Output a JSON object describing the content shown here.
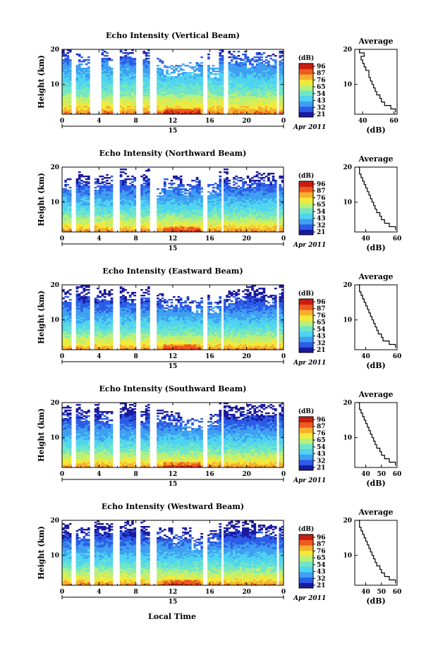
{
  "figure": {
    "date_label": "Apr 2011",
    "day_label": "15",
    "xlabel": "Local Time",
    "x_tick_labels": [
      "0",
      "4",
      "8",
      "12",
      "16",
      "20",
      "0"
    ],
    "colorbar_unit": "(dB)",
    "colorbar_tick_labels": [
      "96",
      "87",
      "76",
      "65",
      "54",
      "43",
      "32",
      "21"
    ],
    "panel_titles": [
      "Echo Intensity (Vertical Beam)",
      "Echo Intensity (Northward Beam)",
      "Echo Intensity (Eastward Beam)",
      "Echo Intensity (Southward Beam)",
      "Echo Intensity (Westward Beam)"
    ],
    "avg_title": "Average",
    "colors": {
      "background": "#ffffff",
      "axes": "#000000",
      "colormap": [
        "#1a1aa0",
        "#2d5ce6",
        "#3f9ff2",
        "#4fd3f0",
        "#6fe6c8",
        "#b8f07a",
        "#f2ea3a",
        "#f6b02e",
        "#ef5a1e",
        "#c81e10"
      ]
    }
  },
  "chart_data": [
    {
      "type": "heatmap",
      "title": "Echo Intensity (Vertical Beam)",
      "xlabel": "",
      "ylabel": "Height (km)",
      "xlim": [
        0,
        24
      ],
      "ylim": [
        1.5,
        20
      ],
      "x_tick_values": [
        0,
        4,
        8,
        12,
        16,
        20,
        24
      ],
      "y_ticks": [
        10,
        20
      ],
      "colorbar": {
        "label": "(dB)",
        "ticks": [
          21,
          32,
          43,
          54,
          65,
          76,
          87,
          96
        ],
        "range": [
          21,
          96
        ]
      },
      "height_profile_km": [
        1.5,
        3,
        4.5,
        6,
        7.5,
        9,
        10.5,
        12,
        13.5,
        15,
        16.5,
        18,
        19.5
      ],
      "intensity_profile_db": [
        85,
        74,
        68,
        63,
        57,
        53,
        49,
        45,
        42,
        39,
        35,
        30,
        26
      ],
      "data_gaps_hours": [
        [
          0.9,
          1.4
        ],
        [
          3.0,
          4.3
        ],
        [
          5.6,
          6.2
        ],
        [
          8.0,
          8.7
        ],
        [
          9.6,
          10.2
        ],
        [
          15.3,
          15.8
        ],
        [
          17.4,
          18.0
        ],
        [
          23.2,
          23.6
        ]
      ],
      "echo_top_km": 19.5,
      "average": {
        "type": "line",
        "title": "Average",
        "xlabel": "(dB)",
        "ylabel": "",
        "xlim": [
          35,
          62
        ],
        "ylim": [
          1.5,
          20
        ],
        "x_ticks": [
          40,
          60
        ],
        "y_ticks": [
          10,
          20
        ],
        "y_km": [
          2,
          3,
          4,
          5,
          6,
          7,
          8,
          9,
          10,
          11,
          12,
          13,
          14,
          15,
          16,
          17,
          18,
          19,
          20
        ],
        "x_db": [
          61,
          58,
          54,
          52,
          51,
          49,
          48,
          47,
          46,
          45,
          44,
          44,
          42,
          41,
          40,
          39,
          41,
          38,
          39
        ]
      }
    },
    {
      "type": "heatmap",
      "title": "Echo Intensity (Northward Beam)",
      "xlabel": "",
      "ylabel": "Height (km)",
      "xlim": [
        0,
        24
      ],
      "ylim": [
        1.5,
        20
      ],
      "x_tick_values": [
        0,
        4,
        8,
        12,
        16,
        20,
        24
      ],
      "y_ticks": [
        10,
        20
      ],
      "colorbar": {
        "label": "(dB)",
        "ticks": [
          21,
          32,
          43,
          54,
          65,
          76,
          87,
          96
        ],
        "range": [
          21,
          96
        ]
      },
      "height_profile_km": [
        1.5,
        3,
        4.5,
        6,
        7.5,
        9,
        10.5,
        12,
        13.5,
        15,
        16.5,
        18,
        19.5
      ],
      "intensity_profile_db": [
        82,
        72,
        64,
        58,
        52,
        47,
        43,
        39,
        35,
        31,
        27,
        24,
        21
      ],
      "data_gaps_hours": [
        [
          0.9,
          1.4
        ],
        [
          3.0,
          3.6
        ],
        [
          5.6,
          6.2
        ],
        [
          8.0,
          8.6
        ],
        [
          9.5,
          10.2
        ],
        [
          15.2,
          15.8
        ],
        [
          17.2,
          17.6
        ],
        [
          23.2,
          23.6
        ]
      ],
      "echo_top_km": 18.5,
      "average": {
        "type": "line",
        "title": "Average",
        "xlabel": "(dB)",
        "ylabel": "",
        "xlim": [
          33,
          60
        ],
        "ylim": [
          1.5,
          20
        ],
        "x_ticks": [
          40,
          60
        ],
        "y_ticks": [
          10,
          20
        ],
        "y_km": [
          2,
          3,
          4,
          5,
          6,
          7,
          8,
          9,
          10,
          11,
          12,
          13,
          14,
          15,
          16,
          17,
          18,
          19,
          20
        ],
        "x_db": [
          59,
          55,
          52,
          50,
          49,
          47,
          46,
          45,
          44,
          43,
          42,
          41,
          40,
          39,
          38,
          37,
          36,
          36,
          35
        ]
      }
    },
    {
      "type": "heatmap",
      "title": "Echo Intensity (Eastward Beam)",
      "xlabel": "",
      "ylabel": "Height (km)",
      "xlim": [
        0,
        24
      ],
      "ylim": [
        1.5,
        20
      ],
      "x_tick_values": [
        0,
        4,
        8,
        12,
        16,
        20,
        24
      ],
      "y_ticks": [
        10,
        20
      ],
      "colorbar": {
        "label": "(dB)",
        "ticks": [
          21,
          32,
          43,
          54,
          65,
          76,
          87,
          96
        ],
        "range": [
          21,
          96
        ]
      },
      "height_profile_km": [
        1.5,
        3,
        4.5,
        6,
        7.5,
        9,
        10.5,
        12,
        13.5,
        15,
        16.5,
        18,
        19.5
      ],
      "intensity_profile_db": [
        82,
        71,
        64,
        58,
        52,
        47,
        43,
        39,
        35,
        31,
        27,
        24,
        21
      ],
      "data_gaps_hours": [
        [
          0.9,
          1.4
        ],
        [
          3.0,
          3.6
        ],
        [
          5.6,
          6.2
        ],
        [
          8.0,
          8.6
        ],
        [
          9.5,
          10.2
        ],
        [
          15.2,
          15.8
        ],
        [
          17.2,
          17.6
        ],
        [
          23.2,
          23.6
        ]
      ],
      "echo_top_km": 18.5,
      "average": {
        "type": "line",
        "title": "Average",
        "xlabel": "(dB)",
        "ylabel": "",
        "xlim": [
          33,
          60
        ],
        "ylim": [
          1.5,
          20
        ],
        "x_ticks": [
          40,
          60
        ],
        "y_ticks": [
          10,
          20
        ],
        "y_km": [
          2,
          3,
          4,
          5,
          6,
          7,
          8,
          9,
          10,
          11,
          12,
          13,
          14,
          15,
          16,
          17,
          18,
          19,
          20
        ],
        "x_db": [
          59,
          55,
          51,
          50,
          48,
          47,
          46,
          45,
          44,
          43,
          42,
          41,
          40,
          39,
          38,
          37,
          36,
          36,
          35
        ]
      }
    },
    {
      "type": "heatmap",
      "title": "Echo Intensity (Southward Beam)",
      "xlabel": "",
      "ylabel": "Height (km)",
      "xlim": [
        0,
        24
      ],
      "ylim": [
        1.5,
        20
      ],
      "x_tick_values": [
        0,
        4,
        8,
        12,
        16,
        20,
        24
      ],
      "y_ticks": [
        10,
        20
      ],
      "colorbar": {
        "label": "(dB)",
        "ticks": [
          21,
          32,
          43,
          54,
          65,
          76,
          87,
          96
        ],
        "range": [
          21,
          96
        ]
      },
      "height_profile_km": [
        1.5,
        3,
        4.5,
        6,
        7.5,
        9,
        10.5,
        12,
        13.5,
        15,
        16.5,
        18,
        19.5
      ],
      "intensity_profile_db": [
        82,
        71,
        64,
        58,
        52,
        47,
        43,
        39,
        35,
        31,
        27,
        24,
        21
      ],
      "data_gaps_hours": [
        [
          0.9,
          1.4
        ],
        [
          3.0,
          3.6
        ],
        [
          5.6,
          6.2
        ],
        [
          8.0,
          8.6
        ],
        [
          9.5,
          10.2
        ],
        [
          15.2,
          15.8
        ],
        [
          17.2,
          17.6
        ],
        [
          23.2,
          23.6
        ]
      ],
      "echo_top_km": 19.0,
      "average": {
        "type": "line",
        "title": "Average",
        "xlabel": "(dB)",
        "ylabel": "",
        "xlim": [
          33,
          60
        ],
        "ylim": [
          1.5,
          20
        ],
        "x_ticks": [
          40,
          50,
          60
        ],
        "y_ticks": [
          10,
          20
        ],
        "y_km": [
          2,
          3,
          4,
          5,
          6,
          7,
          8,
          9,
          10,
          11,
          12,
          13,
          14,
          15,
          16,
          17,
          18,
          19,
          20
        ],
        "x_db": [
          59,
          55,
          52,
          50,
          49,
          47,
          46,
          45,
          44,
          43,
          42,
          41,
          40,
          39,
          38,
          37,
          36,
          36,
          35
        ]
      }
    },
    {
      "type": "heatmap",
      "title": "Echo Intensity (Westward Beam)",
      "xlabel": "Local Time",
      "ylabel": "Height (km)",
      "xlim": [
        0,
        24
      ],
      "ylim": [
        1.5,
        20
      ],
      "x_tick_values": [
        0,
        4,
        8,
        12,
        16,
        20,
        24
      ],
      "y_ticks": [
        10,
        20
      ],
      "colorbar": {
        "label": "(dB)",
        "ticks": [
          21,
          32,
          43,
          54,
          65,
          76,
          87,
          96
        ],
        "range": [
          21,
          96
        ]
      },
      "height_profile_km": [
        1.5,
        3,
        4.5,
        6,
        7.5,
        9,
        10.5,
        12,
        13.5,
        15,
        16.5,
        18,
        19.5
      ],
      "intensity_profile_db": [
        82,
        71,
        64,
        58,
        52,
        47,
        43,
        39,
        35,
        31,
        27,
        24,
        21
      ],
      "data_gaps_hours": [
        [
          0.9,
          1.4
        ],
        [
          3.0,
          3.6
        ],
        [
          5.6,
          6.2
        ],
        [
          8.0,
          8.6
        ],
        [
          9.5,
          10.2
        ],
        [
          15.2,
          15.8
        ],
        [
          17.2,
          17.6
        ],
        [
          23.2,
          23.6
        ]
      ],
      "echo_top_km": 19.0,
      "average": {
        "type": "line",
        "title": "Average",
        "xlabel": "(dB)",
        "ylabel": "",
        "xlim": [
          33,
          60
        ],
        "ylim": [
          1.5,
          20
        ],
        "x_ticks": [
          40,
          50,
          60
        ],
        "y_ticks": [
          10,
          20
        ],
        "y_km": [
          2,
          3,
          4,
          5,
          6,
          7,
          8,
          9,
          10,
          11,
          12,
          13,
          14,
          15,
          16,
          17,
          18,
          19,
          20
        ],
        "x_db": [
          59,
          55,
          52,
          50,
          49,
          47,
          46,
          45,
          44,
          43,
          42,
          41,
          40,
          39,
          38,
          37,
          36,
          36,
          35
        ]
      }
    }
  ]
}
